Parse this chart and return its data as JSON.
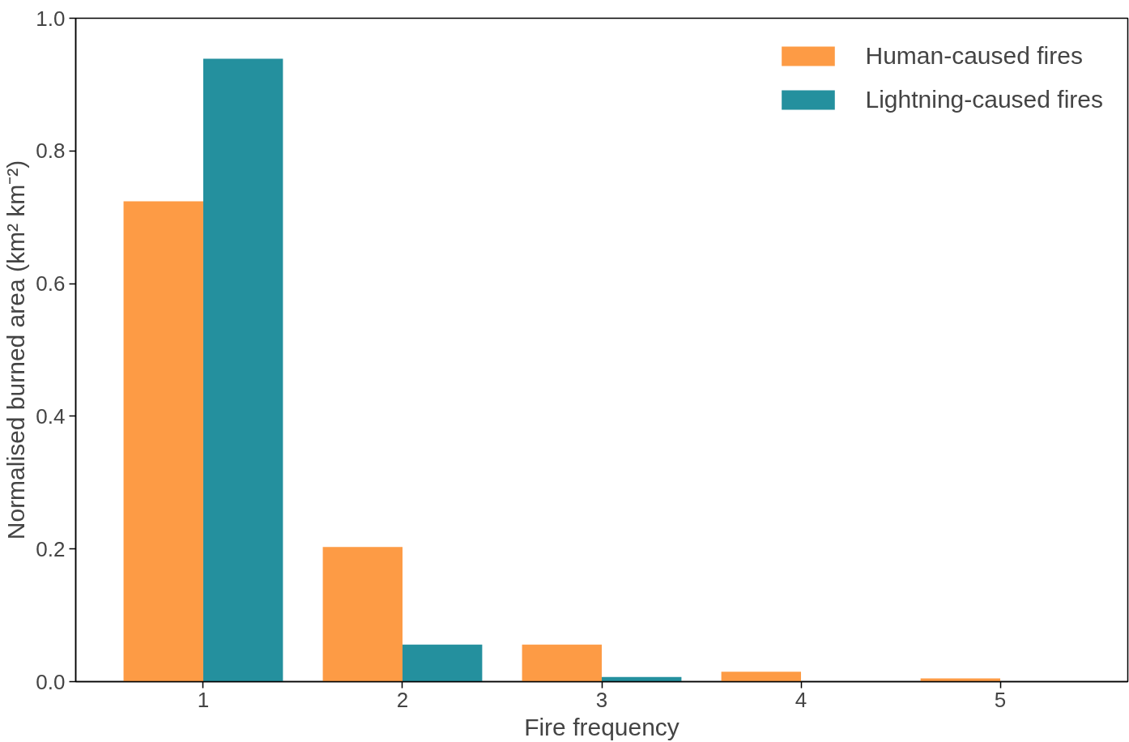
{
  "chart_data": {
    "type": "bar",
    "xlabel": "Fire frequency",
    "ylabel": "Normalised burned area (km² km⁻²)",
    "x": [
      1,
      2,
      3,
      4,
      5
    ],
    "series": [
      {
        "name": "Human-caused fires",
        "color": "#fd9b45",
        "values": [
          0.724,
          0.203,
          0.056,
          0.015,
          0.005
        ]
      },
      {
        "name": "Lightning-caused fires",
        "color": "#24909e",
        "values": [
          0.939,
          0.056,
          0.007,
          0,
          0
        ]
      }
    ],
    "xlim": [
      0.36,
      5.64
    ],
    "ylim": [
      0,
      1.0
    ],
    "xticks": [
      1,
      2,
      3,
      4,
      5
    ],
    "yticks": [
      {
        "value": 0,
        "label": "0.0"
      },
      {
        "value": 0.2,
        "label": "0.2"
      },
      {
        "value": 0.4,
        "label": "0.4"
      },
      {
        "value": 0.6,
        "label": "0.6"
      },
      {
        "value": 0.8,
        "label": "0.8"
      },
      {
        "value": 1.0,
        "label": "1.0"
      }
    ],
    "grid": false,
    "legend": "top right"
  }
}
